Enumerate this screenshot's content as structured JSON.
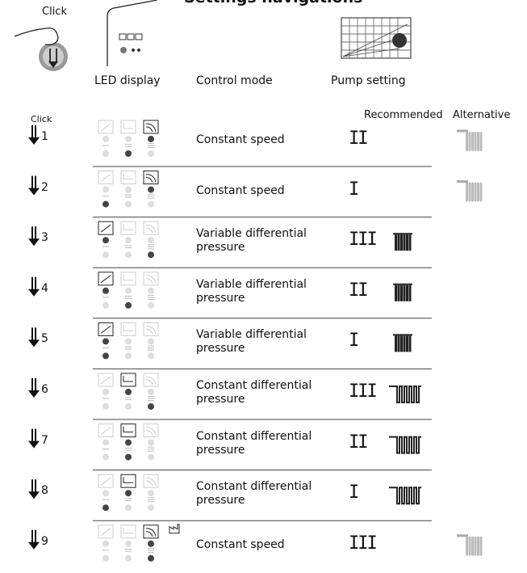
{
  "header": {
    "title": "Settings navigations",
    "click": "Click",
    "columns": [
      "LED display",
      "Control mode",
      "Pump setting"
    ],
    "pump_columns": [
      "Recommended",
      "Alternative"
    ],
    "row_click": "Click"
  },
  "rows": [
    {
      "number": "1",
      "mode": "Constant speed",
      "setting": "II"
    },
    {
      "number": "2",
      "mode": "Constant speed",
      "setting": "I"
    },
    {
      "number": "3",
      "mode": "Variable differential pressure",
      "setting": "III"
    },
    {
      "number": "4",
      "mode": "Variable differential pressure",
      "setting": "II"
    },
    {
      "number": "5",
      "mode": "Variable differential pressure",
      "setting": "I"
    },
    {
      "number": "6",
      "mode": "Constant differential pressure",
      "setting": "III"
    },
    {
      "number": "7",
      "mode": "Constant differential pressure",
      "setting": "II"
    },
    {
      "number": "8",
      "mode": "Constant differential pressure",
      "setting": "I"
    },
    {
      "number": "9",
      "mode": "Constant speed",
      "setting": "III"
    }
  ]
}
